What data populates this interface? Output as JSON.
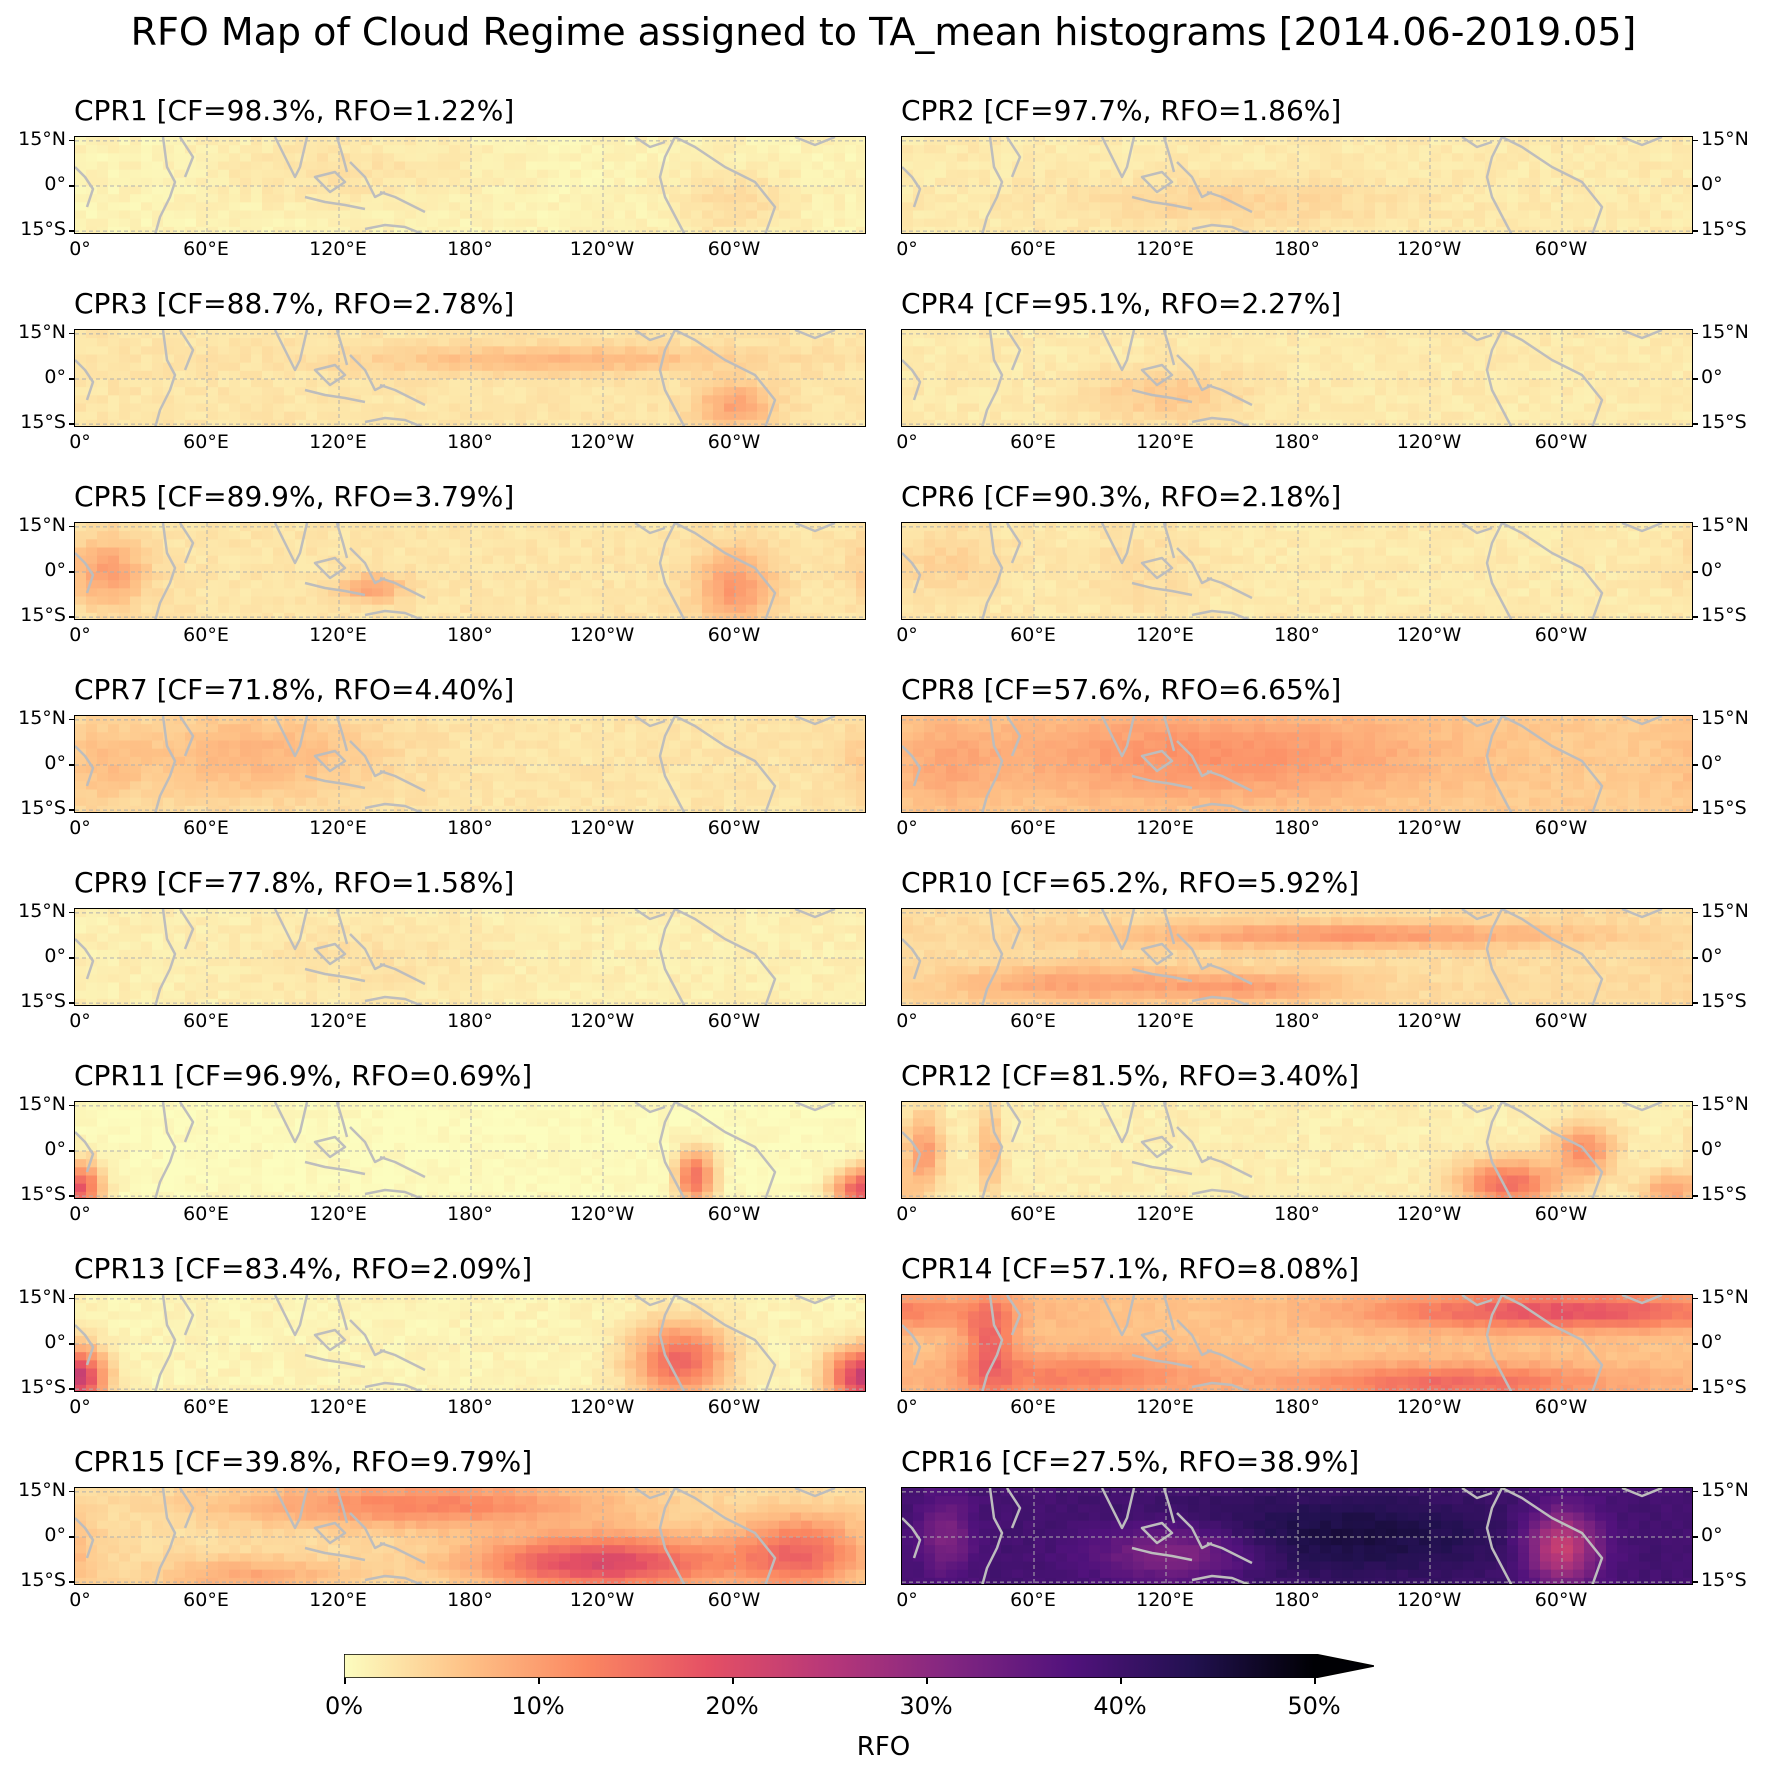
{
  "figure": {
    "title": "RFO Map of Cloud Regime assigned to TA_mean histograms [2014.06-2019.05]"
  },
  "axes": {
    "lat_ticks": [
      "15°N",
      "0°",
      "15°S"
    ],
    "lon_ticks": [
      "0°",
      "60°E",
      "120°E",
      "180°",
      "120°W",
      "60°W"
    ]
  },
  "colors": {
    "colormap": "magma_r",
    "stops": [
      "#fcfdbf",
      "#fec287",
      "#fb8761",
      "#e55064",
      "#b73779",
      "#822681",
      "#51127c",
      "#221150",
      "#000004"
    ],
    "coastline": "#bdbdbd",
    "grid": "#b0b0b0"
  },
  "colorbar": {
    "label": "RFO",
    "tick_labels": [
      "0%",
      "10%",
      "20%",
      "30%",
      "40%",
      "50%"
    ],
    "range": [
      0,
      50
    ],
    "extend": "max"
  },
  "chart_data": [
    {
      "type": "heatmap",
      "title": "CPR1 [CF=98.3%, RFO=1.22%]",
      "regime": "CPR1",
      "cf_percent": 98.3,
      "rfo_percent": 1.22,
      "xlim": [
        0,
        360
      ],
      "ylim": [
        -15,
        15
      ],
      "colorbar_range": [
        0,
        50
      ]
    },
    {
      "type": "heatmap",
      "title": "CPR2 [CF=97.7%, RFO=1.86%]",
      "regime": "CPR2",
      "cf_percent": 97.7,
      "rfo_percent": 1.86,
      "xlim": [
        0,
        360
      ],
      "ylim": [
        -15,
        15
      ],
      "colorbar_range": [
        0,
        50
      ]
    },
    {
      "type": "heatmap",
      "title": "CPR3 [CF=88.7%, RFO=2.78%]",
      "regime": "CPR3",
      "cf_percent": 88.7,
      "rfo_percent": 2.78,
      "xlim": [
        0,
        360
      ],
      "ylim": [
        -15,
        15
      ],
      "colorbar_range": [
        0,
        50
      ]
    },
    {
      "type": "heatmap",
      "title": "CPR4 [CF=95.1%, RFO=2.27%]",
      "regime": "CPR4",
      "cf_percent": 95.1,
      "rfo_percent": 2.27,
      "xlim": [
        0,
        360
      ],
      "ylim": [
        -15,
        15
      ],
      "colorbar_range": [
        0,
        50
      ]
    },
    {
      "type": "heatmap",
      "title": "CPR5 [CF=89.9%, RFO=3.79%]",
      "regime": "CPR5",
      "cf_percent": 89.9,
      "rfo_percent": 3.79,
      "xlim": [
        0,
        360
      ],
      "ylim": [
        -15,
        15
      ],
      "colorbar_range": [
        0,
        50
      ]
    },
    {
      "type": "heatmap",
      "title": "CPR6 [CF=90.3%, RFO=2.18%]",
      "regime": "CPR6",
      "cf_percent": 90.3,
      "rfo_percent": 2.18,
      "xlim": [
        0,
        360
      ],
      "ylim": [
        -15,
        15
      ],
      "colorbar_range": [
        0,
        50
      ]
    },
    {
      "type": "heatmap",
      "title": "CPR7 [CF=71.8%, RFO=4.40%]",
      "regime": "CPR7",
      "cf_percent": 71.8,
      "rfo_percent": 4.4,
      "xlim": [
        0,
        360
      ],
      "ylim": [
        -15,
        15
      ],
      "colorbar_range": [
        0,
        50
      ]
    },
    {
      "type": "heatmap",
      "title": "CPR8 [CF=57.6%, RFO=6.65%]",
      "regime": "CPR8",
      "cf_percent": 57.6,
      "rfo_percent": 6.65,
      "xlim": [
        0,
        360
      ],
      "ylim": [
        -15,
        15
      ],
      "colorbar_range": [
        0,
        50
      ]
    },
    {
      "type": "heatmap",
      "title": "CPR9 [CF=77.8%, RFO=1.58%]",
      "regime": "CPR9",
      "cf_percent": 77.8,
      "rfo_percent": 1.58,
      "xlim": [
        0,
        360
      ],
      "ylim": [
        -15,
        15
      ],
      "colorbar_range": [
        0,
        50
      ]
    },
    {
      "type": "heatmap",
      "title": "CPR10 [CF=65.2%, RFO=5.92%]",
      "regime": "CPR10",
      "cf_percent": 65.2,
      "rfo_percent": 5.92,
      "xlim": [
        0,
        360
      ],
      "ylim": [
        -15,
        15
      ],
      "colorbar_range": [
        0,
        50
      ]
    },
    {
      "type": "heatmap",
      "title": "CPR11 [CF=96.9%, RFO=0.69%]",
      "regime": "CPR11",
      "cf_percent": 96.9,
      "rfo_percent": 0.69,
      "xlim": [
        0,
        360
      ],
      "ylim": [
        -15,
        15
      ],
      "colorbar_range": [
        0,
        50
      ]
    },
    {
      "type": "heatmap",
      "title": "CPR12 [CF=81.5%, RFO=3.40%]",
      "regime": "CPR12",
      "cf_percent": 81.5,
      "rfo_percent": 3.4,
      "xlim": [
        0,
        360
      ],
      "ylim": [
        -15,
        15
      ],
      "colorbar_range": [
        0,
        50
      ]
    },
    {
      "type": "heatmap",
      "title": "CPR13 [CF=83.4%, RFO=2.09%]",
      "regime": "CPR13",
      "cf_percent": 83.4,
      "rfo_percent": 2.09,
      "xlim": [
        0,
        360
      ],
      "ylim": [
        -15,
        15
      ],
      "colorbar_range": [
        0,
        50
      ]
    },
    {
      "type": "heatmap",
      "title": "CPR14 [CF=57.1%, RFO=8.08%]",
      "regime": "CPR14",
      "cf_percent": 57.1,
      "rfo_percent": 8.08,
      "xlim": [
        0,
        360
      ],
      "ylim": [
        -15,
        15
      ],
      "colorbar_range": [
        0,
        50
      ]
    },
    {
      "type": "heatmap",
      "title": "CPR15 [CF=39.8%, RFO=9.79%]",
      "regime": "CPR15",
      "cf_percent": 39.8,
      "rfo_percent": 9.79,
      "xlim": [
        0,
        360
      ],
      "ylim": [
        -15,
        15
      ],
      "colorbar_range": [
        0,
        50
      ]
    },
    {
      "type": "heatmap",
      "title": "CPR16 [CF=27.5%, RFO=38.9%]",
      "regime": "CPR16",
      "cf_percent": 27.5,
      "rfo_percent": 38.9,
      "xlim": [
        0,
        360
      ],
      "ylim": [
        -15,
        15
      ],
      "colorbar_range": [
        0,
        50
      ]
    }
  ]
}
